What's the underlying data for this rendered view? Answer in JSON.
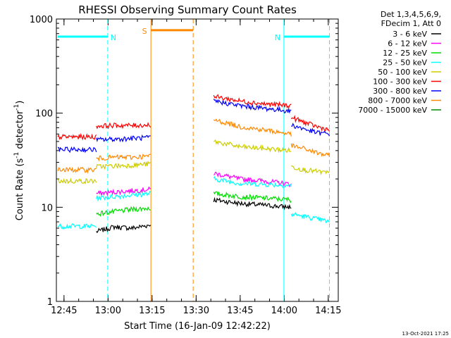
{
  "chart_data": {
    "type": "line",
    "title": "RHESSI Observing Summary Count Rates",
    "xlabel": "Start Time (16-Jan-09 12:42:22)",
    "ylabel_main": "Count Rate (s",
    "ylabel_sup1": "-1",
    "ylabel_mid": " detector",
    "ylabel_sup2": "-1",
    "ylabel_end": ")",
    "footer": "13-Oct-2021 17:25",
    "y_scale": "log",
    "ylim": [
      1,
      1000
    ],
    "xlim_minutes": [
      0,
      96
    ],
    "x_ticks": [
      {
        "label": "12:45",
        "t": 2.6
      },
      {
        "label": "13:00",
        "t": 17.6
      },
      {
        "label": "13:15",
        "t": 32.6
      },
      {
        "label": "13:30",
        "t": 47.6
      },
      {
        "label": "13:45",
        "t": 62.6
      },
      {
        "label": "14:00",
        "t": 77.6
      },
      {
        "label": "14:15",
        "t": 92.6
      }
    ],
    "y_ticks": [
      {
        "label": "1",
        "v": 1
      },
      {
        "label": "10",
        "v": 10
      },
      {
        "label": "100",
        "v": 100
      },
      {
        "label": "1000",
        "v": 1000
      }
    ],
    "legend_header": [
      "Det 1,3,4,5,6,9,",
      "FDecim 1, Att 0"
    ],
    "legend_position": "right",
    "series": [
      {
        "name": "3 - 6 keV",
        "color": "#000000",
        "segments": [
          [
            13.6,
            32.1,
            [
              5.5,
              6.2,
              6.0,
              6.5
            ]
          ],
          [
            53.6,
            80,
            [
              12,
              11,
              10.5,
              10
            ]
          ]
        ]
      },
      {
        "name": "6 - 12 keV",
        "color": "#ff00ff",
        "segments": [
          [
            13.6,
            32.1,
            [
              14,
              14.5,
              15,
              15.5
            ]
          ],
          [
            53.6,
            80,
            [
              23,
              20,
              19,
              17.5
            ]
          ]
        ]
      },
      {
        "name": "12 - 25 keV",
        "color": "#00dd00",
        "segments": [
          [
            13.6,
            32.1,
            [
              8.5,
              9,
              9.5,
              9.8
            ]
          ],
          [
            53.6,
            80,
            [
              14,
              13,
              12.5,
              12
            ]
          ]
        ]
      },
      {
        "name": "25 - 50 keV",
        "color": "#00ffff",
        "segments": [
          [
            0.5,
            13.6,
            [
              6.3,
              6.3
            ]
          ],
          [
            13.6,
            32.1,
            [
              12.5,
              13,
              13.5,
              14
            ]
          ],
          [
            53.6,
            80,
            [
              20,
              18,
              17.5,
              17
            ]
          ],
          [
            80,
            93,
            [
              8.5,
              8,
              7.5,
              7
            ]
          ]
        ]
      },
      {
        "name": "50 - 100 keV",
        "color": "#cccc00",
        "segments": [
          [
            0.5,
            13.6,
            [
              19,
              19
            ]
          ],
          [
            13.6,
            32.1,
            [
              27,
              27.5,
              28,
              29
            ]
          ],
          [
            53.6,
            80,
            [
              50,
              44,
              42,
              40
            ]
          ],
          [
            80,
            93,
            [
              27,
              25,
              24,
              23
            ]
          ]
        ]
      },
      {
        "name": "100 - 300 keV",
        "color": "#ff0000",
        "segments": [
          [
            0.5,
            13.6,
            [
              56,
              56
            ]
          ],
          [
            13.6,
            32.1,
            [
              73,
              74,
              74,
              75
            ]
          ],
          [
            53.6,
            80,
            [
              150,
              135,
              125,
              120
            ]
          ],
          [
            80,
            93,
            [
              90,
              80,
              72,
              66
            ]
          ]
        ]
      },
      {
        "name": "300 - 800 keV",
        "color": "#0000ff",
        "segments": [
          [
            0.5,
            13.6,
            [
              41,
              41
            ]
          ],
          [
            13.6,
            32.1,
            [
              52,
              53,
              54,
              55
            ]
          ],
          [
            53.6,
            80,
            [
              135,
              120,
              112,
              105
            ]
          ],
          [
            80,
            93,
            [
              75,
              68,
              62,
              60
            ]
          ]
        ]
      },
      {
        "name": "800 - 7000 keV",
        "color": "#ff8800",
        "segments": [
          [
            0.5,
            13.6,
            [
              25,
              25
            ]
          ],
          [
            13.6,
            32.1,
            [
              33,
              34,
              34,
              35
            ]
          ],
          [
            53.6,
            80,
            [
              85,
              72,
              66,
              60
            ]
          ],
          [
            80,
            93,
            [
              45,
              42,
              38,
              35
            ]
          ]
        ]
      },
      {
        "name": "7000 - 15000 keV",
        "color": "#008800",
        "segments": []
      }
    ],
    "markers": [
      {
        "label": "N",
        "color": "#00ffff",
        "y": 650,
        "t_start": 0.5,
        "t_end": 17.5,
        "dash_at": 17.5,
        "solid_at": null
      },
      {
        "label": "N",
        "color": "#00ffff",
        "y": 650,
        "t_start": 77.5,
        "t_end": 93,
        "dash_at": 93,
        "solid_at": 77.5
      },
      {
        "label": "S",
        "color": "#ff8800",
        "y": 760,
        "t_start": 32.2,
        "t_end": 46.6,
        "dash_at": 46.6,
        "solid_at": 32.2
      }
    ]
  }
}
